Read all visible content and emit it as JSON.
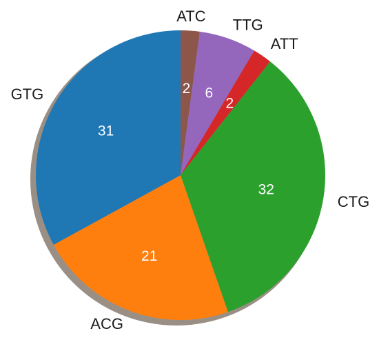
{
  "chart_data": {
    "type": "pie",
    "title": "",
    "start_angle_deg": 90,
    "direction": "clockwise",
    "shadow": true,
    "slices": [
      {
        "label": "ATC",
        "value": 2,
        "color": "#8c564b"
      },
      {
        "label": "TTG",
        "value": 6,
        "color": "#9467bd"
      },
      {
        "label": "ATT",
        "value": 2,
        "color": "#d62728"
      },
      {
        "label": "CTG",
        "value": 32,
        "color": "#2ca02c"
      },
      {
        "label": "ACG",
        "value": 21,
        "color": "#ff7f0e"
      },
      {
        "label": "GTG",
        "value": 31,
        "color": "#1f77b4"
      }
    ]
  }
}
